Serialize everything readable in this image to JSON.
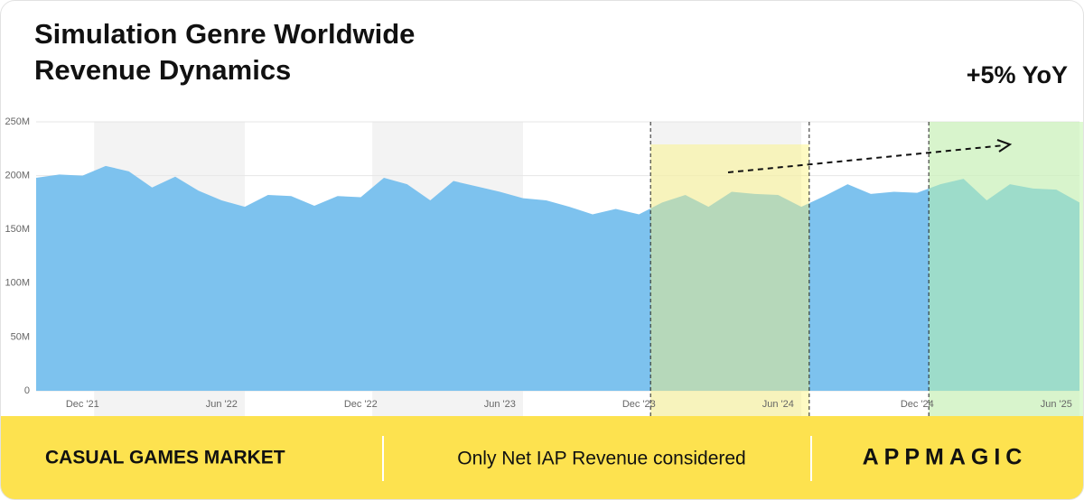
{
  "chart_data": {
    "type": "area",
    "title": "Simulation Genre Worldwide",
    "subtitle": "Revenue Dynamics",
    "annotation": "+5% YoY",
    "footer_left": "CASUAL GAMES MARKET",
    "footer_center": "Only Net IAP Revenue considered",
    "brand": "APPMAGIC",
    "color": "#7dc2ee",
    "categories": [
      null,
      null,
      "Dec '21",
      null,
      null,
      null,
      null,
      null,
      "Jun '22",
      null,
      null,
      null,
      null,
      null,
      "Dec '22",
      null,
      null,
      null,
      null,
      null,
      "Jun '23",
      null,
      null,
      null,
      null,
      null,
      "Dec '23",
      null,
      null,
      null,
      null,
      null,
      "Jun '24",
      null,
      null,
      null,
      null,
      null,
      "Dec '24",
      null,
      null,
      null,
      null,
      null,
      "Jun '25",
      null
    ],
    "values": [
      198,
      201,
      200,
      209,
      204,
      189,
      199,
      186,
      177,
      171,
      182,
      181,
      172,
      181,
      180,
      198,
      192,
      177,
      195,
      190,
      185,
      179,
      177,
      171,
      164,
      169,
      164,
      175,
      182,
      171,
      185,
      183,
      182,
      171,
      181,
      192,
      183,
      185,
      184,
      192,
      197,
      177,
      192,
      188,
      187,
      175
    ],
    "ylim": [
      0,
      250
    ],
    "yticks": [
      0,
      {
        "value": 50,
        "label": "50M"
      },
      {
        "value": 100,
        "label": "100M"
      },
      {
        "value": 150,
        "label": "150M"
      },
      {
        "value": 200,
        "label": "200M"
      },
      {
        "value": 250,
        "label": "250M"
      }
    ],
    "grid": true
  }
}
